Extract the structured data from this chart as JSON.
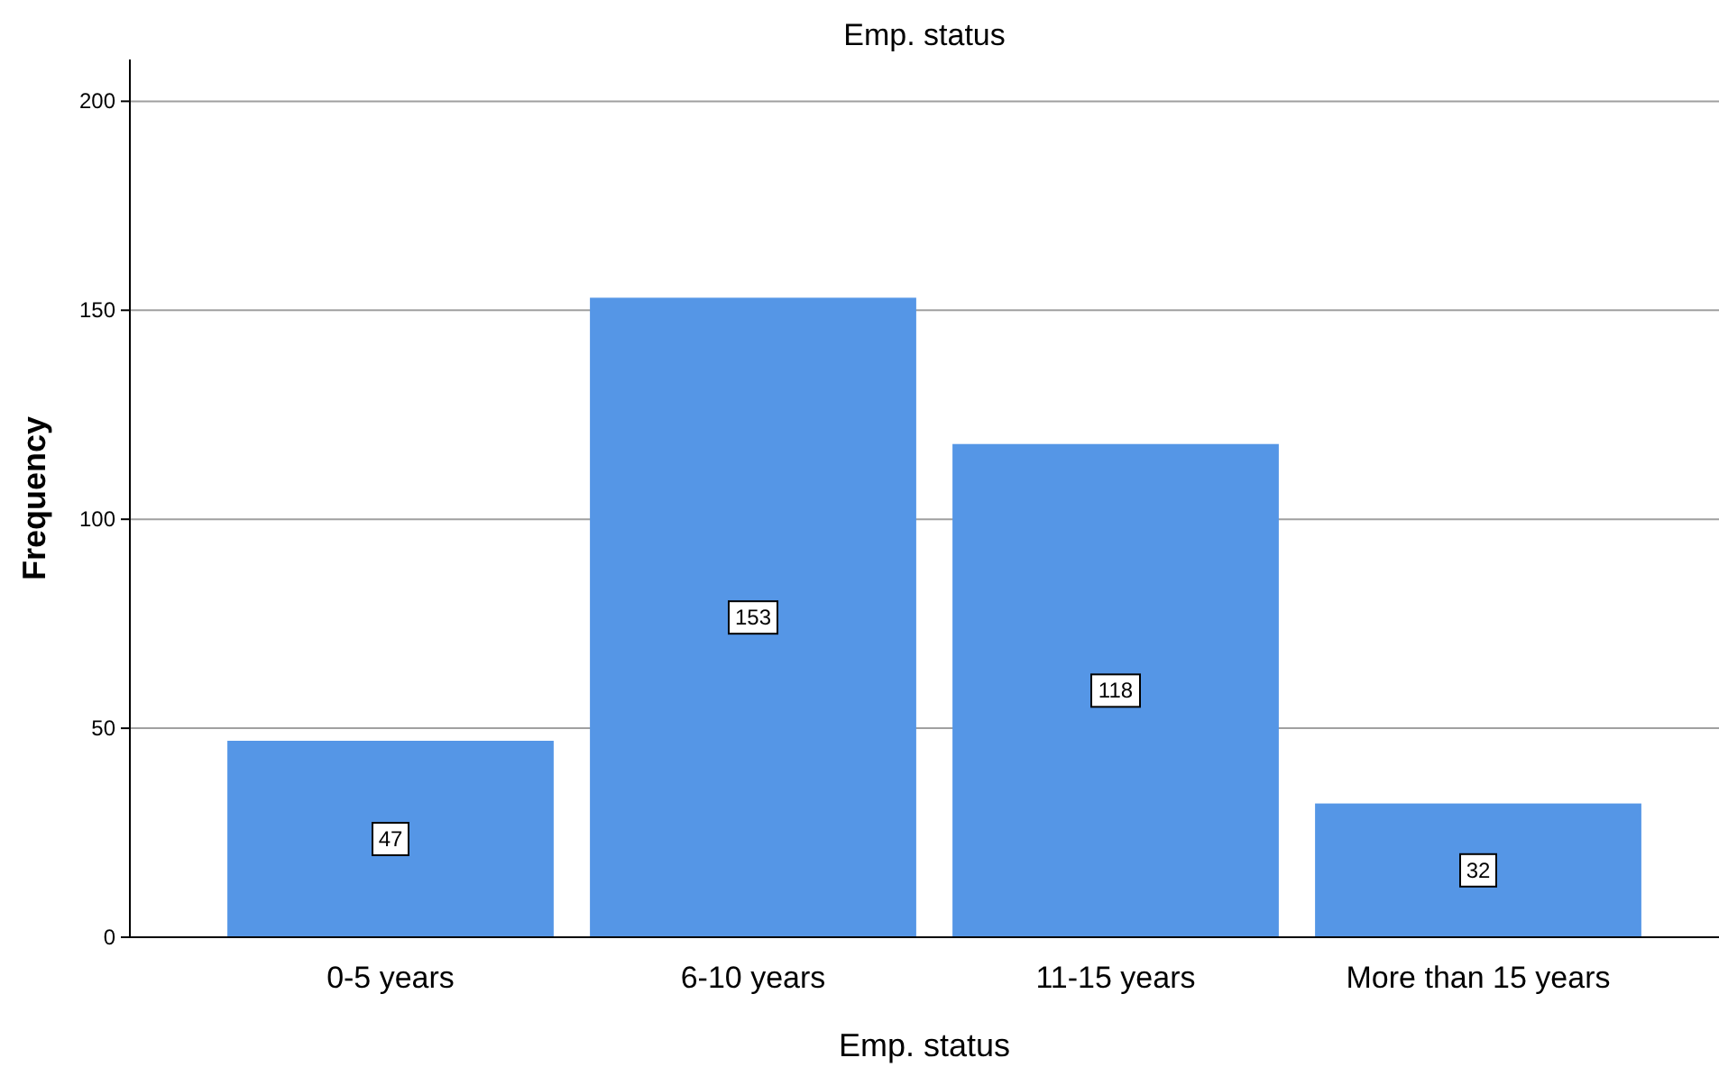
{
  "chart_data": {
    "type": "bar",
    "title": "Emp. status",
    "xlabel": "Emp. status",
    "ylabel": "Frequency",
    "categories": [
      "0-5 years",
      "6-10 years",
      "11-15 years",
      "More than 15 years"
    ],
    "values": [
      47,
      153,
      118,
      32
    ],
    "color": "#5596e6",
    "ylim": [
      0,
      210
    ],
    "yticks": [
      0,
      50,
      100,
      150,
      200
    ],
    "grid": "y",
    "data_labels": true
  }
}
